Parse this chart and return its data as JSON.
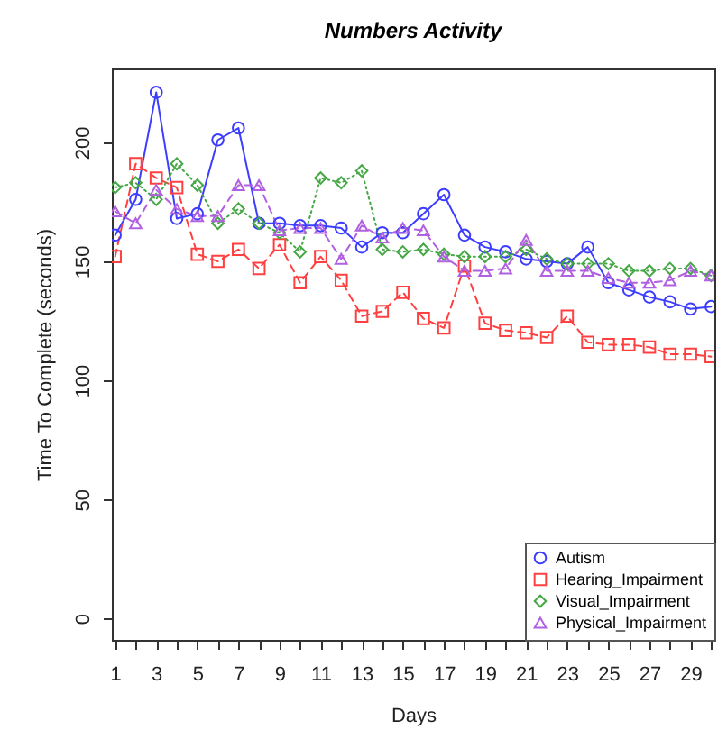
{
  "chart_data": {
    "type": "line",
    "title": "Numbers Activity",
    "xlabel": "Days",
    "ylabel": "Time To Complete (seconds)",
    "x": [
      1,
      2,
      3,
      4,
      5,
      6,
      7,
      8,
      9,
      10,
      11,
      12,
      13,
      14,
      15,
      16,
      17,
      18,
      19,
      20,
      21,
      22,
      23,
      24,
      25,
      26,
      27,
      28,
      29,
      30
    ],
    "series": [
      {
        "name": "Autism",
        "color": "#3d3dff",
        "marker": "circle",
        "line_style": "solid",
        "values": [
          161,
          176,
          221,
          168,
          170,
          201,
          206,
          166,
          166,
          165,
          165,
          164,
          156,
          162,
          162,
          170,
          178,
          161,
          156,
          154,
          151,
          150,
          149,
          156,
          141,
          138,
          135,
          133,
          130,
          131
        ]
      },
      {
        "name": "Hearing_Impairment",
        "color": "#ff4040",
        "marker": "square",
        "line_style": "dashed",
        "values": [
          152,
          191,
          185,
          181,
          153,
          150,
          155,
          147,
          157,
          141,
          152,
          142,
          127,
          129,
          137,
          126,
          122,
          148,
          124,
          121,
          120,
          118,
          127,
          116,
          115,
          115,
          114,
          111,
          111,
          110
        ]
      },
      {
        "name": "Visual_Impairment",
        "color": "#45a845",
        "marker": "diamond",
        "line_style": "dotted",
        "values": [
          181,
          183,
          176,
          191,
          182,
          166,
          172,
          166,
          162,
          154,
          185,
          183,
          188,
          155,
          154,
          155,
          153,
          152,
          152,
          152,
          155,
          151,
          149,
          149,
          149,
          146,
          146,
          147,
          147,
          144
        ]
      },
      {
        "name": "Physical_Impairment",
        "color": "#b060e0",
        "marker": "triangle",
        "line_style": "dashed",
        "values": [
          171,
          166,
          180,
          172,
          169,
          169,
          182,
          182,
          163,
          164,
          164,
          151,
          165,
          160,
          164,
          163,
          152,
          146,
          146,
          147,
          159,
          146,
          146,
          146,
          143,
          141,
          141,
          142,
          146,
          144
        ]
      }
    ],
    "xlim": [
      0.84,
      30.16
    ],
    "ylim": [
      -9,
      231
    ],
    "xticks": [
      1,
      {
        "value": 2,
        "label": null
      },
      3,
      {
        "value": 4,
        "label": null
      },
      5,
      {
        "value": 6,
        "label": null
      },
      7,
      {
        "value": 8,
        "label": null
      },
      9,
      {
        "value": 10,
        "label": null
      },
      11,
      {
        "value": 12,
        "label": null
      },
      13,
      {
        "value": 14,
        "label": null
      },
      15,
      {
        "value": 16,
        "label": null
      },
      17,
      {
        "value": 18,
        "label": null
      },
      19,
      {
        "value": 20,
        "label": null
      },
      21,
      {
        "value": 22,
        "label": null
      },
      23,
      {
        "value": 24,
        "label": null
      },
      25,
      {
        "value": 26,
        "label": null
      },
      27,
      {
        "value": 28,
        "label": null
      },
      29,
      {
        "value": 30,
        "label": null
      }
    ],
    "yticks": [
      0,
      50,
      100,
      150,
      200
    ],
    "legend": "bottom right",
    "grid": false
  }
}
